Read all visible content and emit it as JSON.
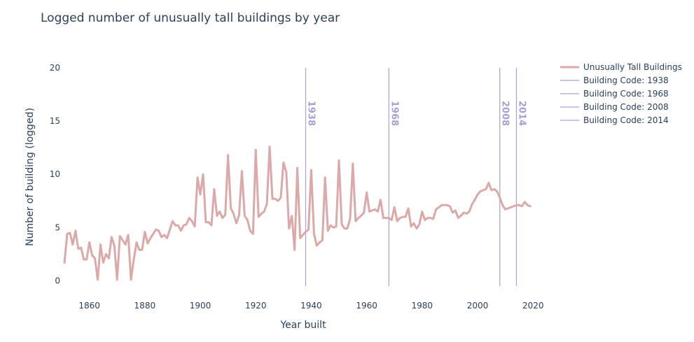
{
  "chart_data": {
    "type": "line",
    "title": "Logged number of unusually tall buildings by year",
    "xlabel": "Year built",
    "ylabel": "Number of building (logged)",
    "xlim": [
      1851,
      2025
    ],
    "ylim": [
      -0.5,
      20
    ],
    "x_ticks": [
      1860,
      1880,
      1900,
      1920,
      1940,
      1960,
      1980,
      2000,
      2020
    ],
    "y_ticks": [
      0,
      5,
      10,
      15,
      20
    ],
    "grid": false,
    "legend_position": "top-right",
    "series": [
      {
        "name": "Unusually Tall Buildings",
        "color": "#dca8a8",
        "x": [
          1851,
          1852,
          1853,
          1854,
          1855,
          1856,
          1857,
          1858,
          1859,
          1860,
          1861,
          1862,
          1863,
          1864,
          1865,
          1866,
          1867,
          1868,
          1869,
          1870,
          1871,
          1872,
          1873,
          1874,
          1875,
          1876,
          1877,
          1878,
          1879,
          1880,
          1881,
          1882,
          1883,
          1884,
          1885,
          1886,
          1887,
          1888,
          1889,
          1890,
          1891,
          1892,
          1893,
          1894,
          1895,
          1896,
          1897,
          1898,
          1899,
          1900,
          1901,
          1902,
          1903,
          1904,
          1905,
          1906,
          1907,
          1908,
          1909,
          1910,
          1911,
          1912,
          1913,
          1914,
          1915,
          1916,
          1917,
          1918,
          1919,
          1920,
          1921,
          1922,
          1923,
          1924,
          1925,
          1926,
          1927,
          1928,
          1929,
          1930,
          1931,
          1932,
          1933,
          1934,
          1935,
          1936,
          1937,
          1938,
          1939,
          1940,
          1941,
          1942,
          1943,
          1944,
          1945,
          1946,
          1947,
          1948,
          1949,
          1950,
          1951,
          1952,
          1953,
          1954,
          1955,
          1956,
          1957,
          1958,
          1959,
          1960,
          1961,
          1962,
          1963,
          1964,
          1965,
          1966,
          1967,
          1968,
          1969,
          1970,
          1971,
          1972,
          1973,
          1974,
          1975,
          1976,
          1977,
          1978,
          1979,
          1980,
          1981,
          1982,
          1983,
          1984,
          1985,
          1986,
          1987,
          1988,
          1989,
          1990,
          1991,
          1992,
          1993,
          1994,
          1995,
          1996,
          1997,
          1998,
          1999,
          2000,
          2001,
          2002,
          2003,
          2004,
          2005,
          2006,
          2007,
          2008,
          2009,
          2010,
          2011,
          2012,
          2013,
          2014,
          2015,
          2016,
          2017,
          2018,
          2019
        ],
        "y": [
          1.7,
          4.4,
          4.5,
          3.4,
          4.7,
          3.0,
          3.1,
          2.0,
          2.0,
          3.6,
          2.4,
          2.1,
          0.1,
          3.4,
          1.7,
          2.5,
          2.1,
          4.1,
          3.3,
          0.1,
          4.2,
          3.8,
          3.4,
          4.3,
          0.1,
          2.0,
          3.6,
          2.9,
          2.9,
          4.6,
          3.5,
          4.0,
          4.4,
          4.8,
          4.7,
          4.1,
          4.3,
          4.0,
          4.8,
          5.6,
          5.2,
          5.2,
          4.7,
          5.2,
          5.3,
          5.9,
          5.6,
          5.1,
          9.7,
          8.1,
          10.0,
          5.5,
          5.5,
          5.2,
          8.6,
          6.1,
          6.5,
          5.9,
          6.2,
          11.8,
          6.8,
          6.3,
          5.4,
          6.2,
          10.3,
          6.1,
          5.7,
          4.7,
          4.4,
          12.3,
          6.0,
          6.3,
          6.5,
          7.2,
          12.6,
          7.7,
          7.7,
          7.5,
          7.8,
          11.1,
          10.2,
          4.9,
          6.1,
          2.9,
          10.6,
          4.0,
          4.3,
          4.6,
          4.8,
          10.4,
          4.4,
          3.3,
          3.6,
          3.8,
          9.7,
          4.7,
          5.2,
          5.0,
          5.1,
          11.3,
          5.3,
          4.9,
          4.9,
          5.8,
          11.0,
          5.6,
          5.9,
          6.1,
          6.4,
          8.3,
          6.5,
          6.6,
          6.7,
          6.5,
          7.6,
          5.9,
          5.9,
          5.9,
          5.7,
          6.9,
          5.6,
          5.9,
          6.0,
          6.0,
          6.8,
          5.1,
          5.4,
          4.9,
          5.3,
          6.5,
          5.7,
          5.9,
          5.9,
          5.8,
          6.7,
          6.9,
          7.1,
          7.1,
          7.1,
          7.0,
          6.4,
          6.6,
          5.9,
          6.1,
          6.4,
          6.3,
          6.5,
          7.2,
          7.6,
          8.1,
          8.4,
          8.5,
          8.6,
          9.2,
          8.5,
          8.6,
          8.4,
          7.8,
          7.1,
          6.7,
          6.8,
          6.9,
          7.0,
          7.1,
          7.1,
          7.0,
          7.4,
          7.1,
          7.0
        ]
      }
    ],
    "reference_lines": [
      {
        "name": "Building Code: 1938",
        "x": 1938,
        "label": "1938",
        "color": "#a6a0d6"
      },
      {
        "name": "Building Code: 1968",
        "x": 1968,
        "label": "1968",
        "color": "#a6a0d6"
      },
      {
        "name": "Building Code: 2008",
        "x": 2008,
        "label": "2008",
        "color": "#a6a0d6"
      },
      {
        "name": "Building Code: 2014",
        "x": 2014,
        "label": "2014",
        "color": "#a6a0d6"
      }
    ]
  }
}
